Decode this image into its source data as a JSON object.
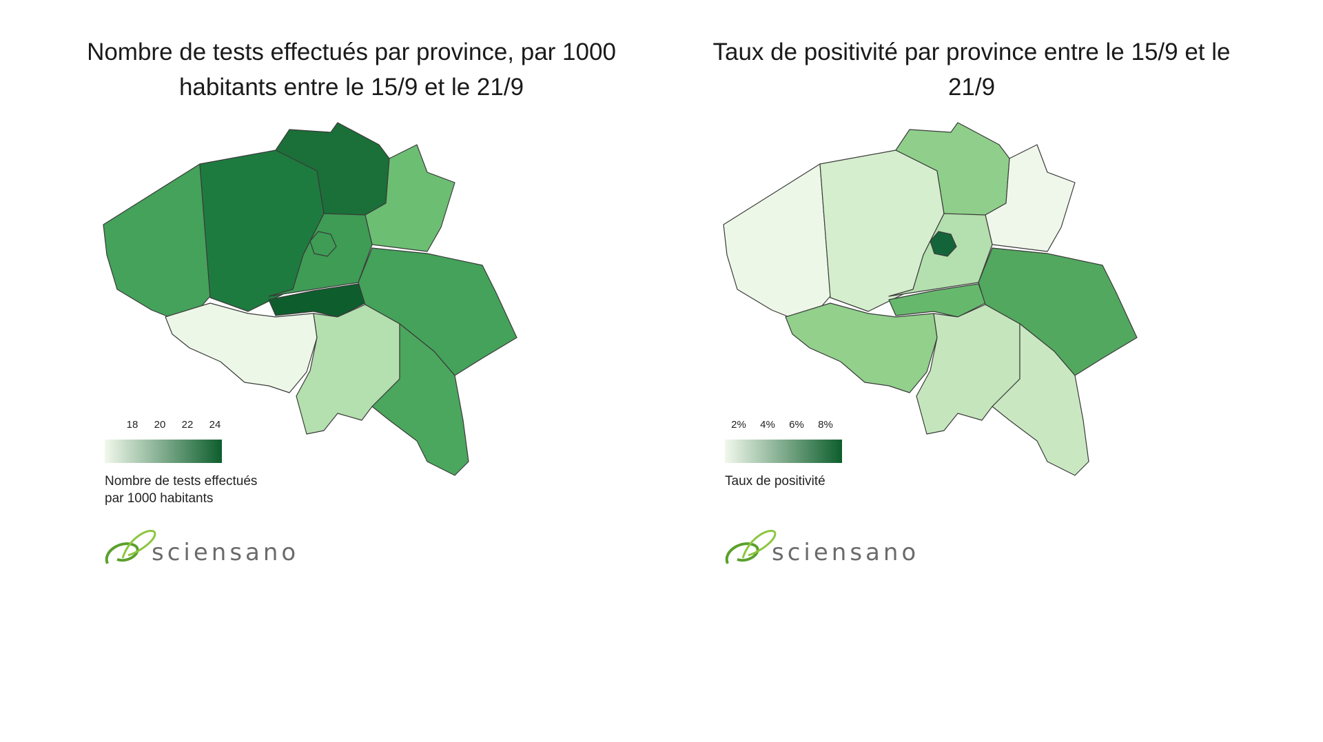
{
  "maps": [
    {
      "id": "tests",
      "title_line1": "Nombre de tests effectués par province, par 1000",
      "title_line2": "habitants entre le 15/9 et le 21/9",
      "legend_ticks": [
        "18",
        "20",
        "22",
        "24"
      ],
      "legend_label_line1": "Nombre de tests effectués",
      "legend_label_line2": "par 1000 habitants",
      "scale_colors": [
        "#f1f8ec",
        "#0d5e2c"
      ],
      "fills": {
        "west_flanders": "#44a25a",
        "east_flanders": "#1e7b3f",
        "antwerp": "#1a7038",
        "limburg": "#6cbe73",
        "flemish_brabant": "#3e9c55",
        "brussels": "#3e9c55",
        "walloon_brabant": "#0d5e2c",
        "hainaut": "#edf7e8",
        "namur": "#b4dfae",
        "liege": "#44a25a",
        "luxembourg": "#4ba75e"
      }
    },
    {
      "id": "positivity",
      "title_line1": "Taux de positivité par province entre le 15/9 et le",
      "title_line2": "21/9",
      "legend_ticks": [
        "2%",
        "4%",
        "6%",
        "8%"
      ],
      "legend_label_line1": "Taux de positivité",
      "legend_label_line2": "",
      "scale_colors": [
        "#f1f8ec",
        "#0d5e2c"
      ],
      "fills": {
        "west_flanders": "#edf7e8",
        "east_flanders": "#d5eece",
        "antwerp": "#8fcf8b",
        "limburg": "#eef7ea",
        "flemish_brabant": "#b4dfae",
        "brussels": "#14643a",
        "walloon_brabant": "#66b96c",
        "hainaut": "#92d08c",
        "namur": "#c5e6bd",
        "liege": "#52a85f",
        "luxembourg": "#c9e8c2"
      }
    }
  ],
  "logo": {
    "text": "sciensano",
    "color": "#5aa02c"
  }
}
